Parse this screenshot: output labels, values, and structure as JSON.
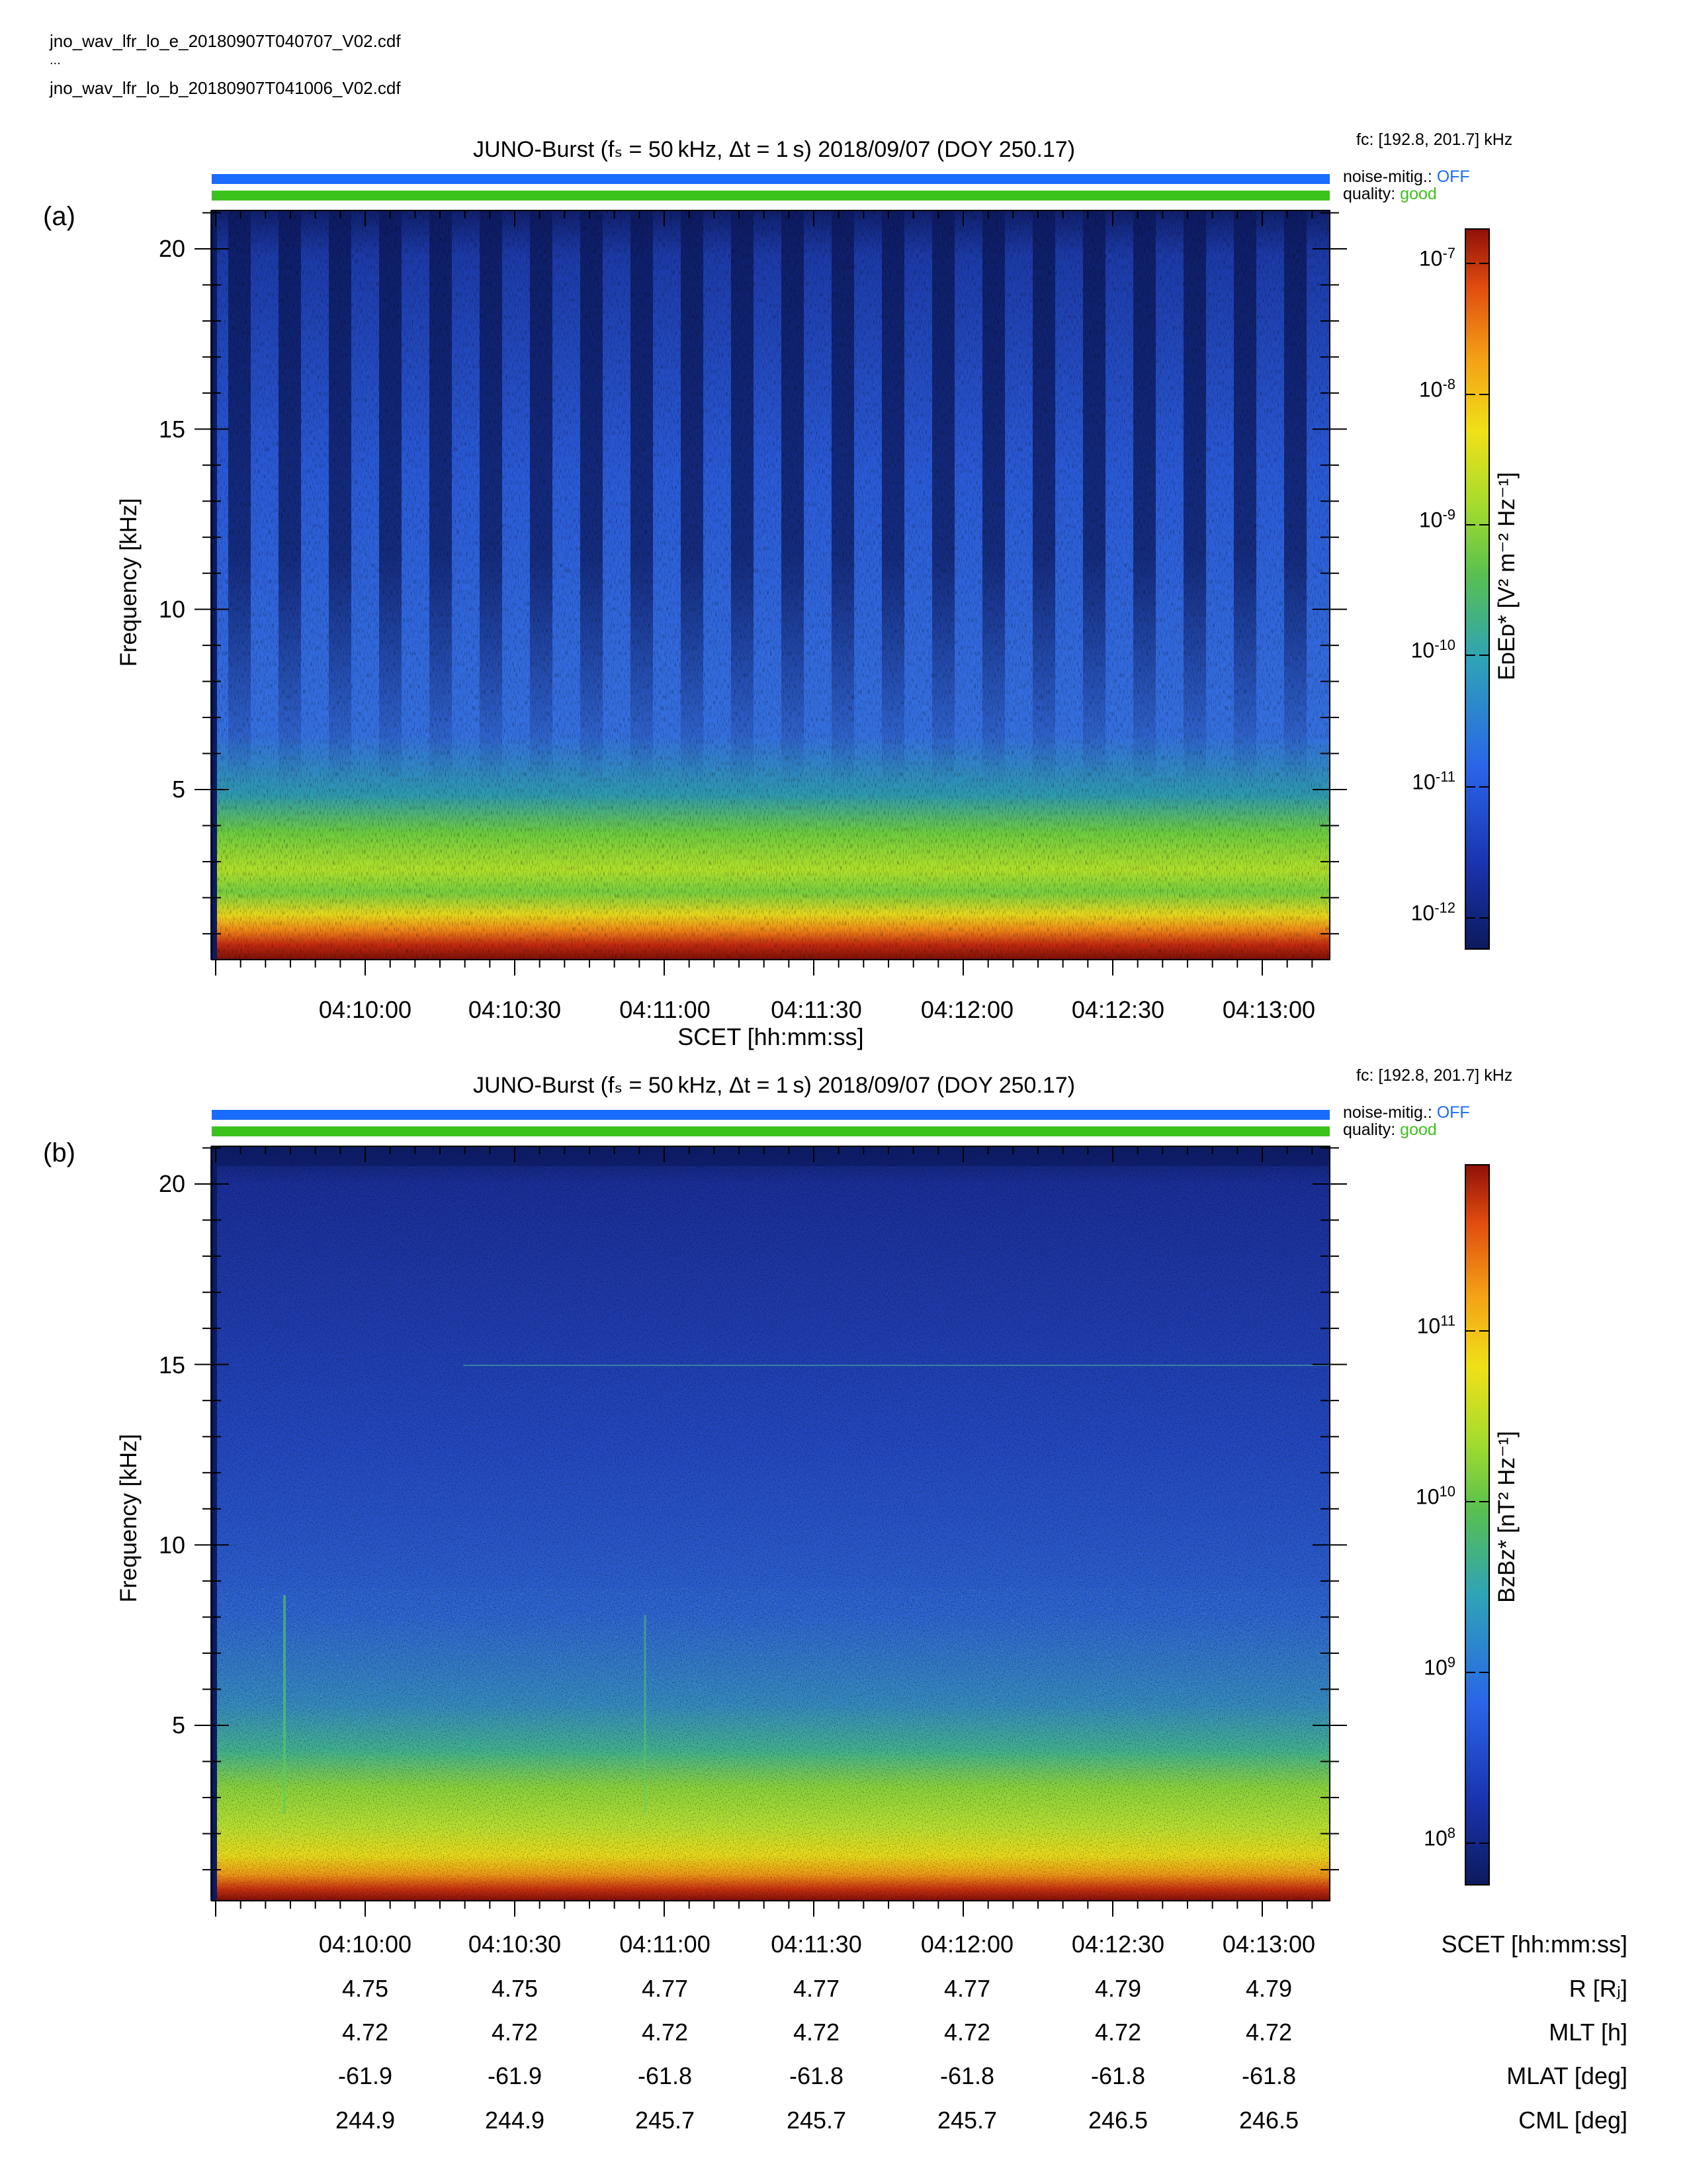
{
  "header": {
    "file1": "jno_wav_lfr_lo_e_20180907T040707_V02.cdf",
    "ellipsis": "...",
    "file2": "jno_wav_lfr_lo_b_20180907T041006_V02.cdf"
  },
  "colors": {
    "noise_bar": "#1a6bff",
    "quality_bar": "#3cc21c"
  },
  "panels": [
    {
      "label": "(a)",
      "title": "JUNO-Burst (fₛ = 50 kHz, Δt = 1 s)  2018/09/07 (DOY 250.17)",
      "fc": "fᴄ: [192.8, 201.7] kHz",
      "noise_label": "noise-mitig.:",
      "noise_value": "OFF",
      "quality_label": "quality:",
      "quality_value": "good",
      "ylabel": "Frequency [kHz]",
      "xlabel": "SCET [hh:mm:ss]",
      "cbar_label": "EᴅEᴅ* [V² m⁻² Hz⁻¹]",
      "cbar_ticks": [
        {
          "base": "10",
          "exp": "-7"
        },
        {
          "base": "10",
          "exp": "-8"
        },
        {
          "base": "10",
          "exp": "-9"
        },
        {
          "base": "10",
          "exp": "-10"
        },
        {
          "base": "10",
          "exp": "-11"
        },
        {
          "base": "10",
          "exp": "-12"
        }
      ]
    },
    {
      "label": "(b)",
      "title": "JUNO-Burst (fₛ = 50 kHz, Δt = 1 s)  2018/09/07 (DOY 250.17)",
      "fc": "fᴄ: [192.8, 201.7] kHz",
      "noise_label": "noise-mitig.:",
      "noise_value": "OFF",
      "quality_label": "quality:",
      "quality_value": "good",
      "ylabel": "Frequency [kHz]",
      "cbar_label": "BᴢBᴢ* [nT² Hz⁻¹]",
      "cbar_ticks": [
        {
          "base": "10",
          "exp": "11"
        },
        {
          "base": "10",
          "exp": "10"
        },
        {
          "base": "10",
          "exp": "9"
        },
        {
          "base": "10",
          "exp": "8"
        }
      ]
    }
  ],
  "table": {
    "rows": [
      {
        "label": "SCET [hh:mm:ss]",
        "values": [
          "04:10:00",
          "04:10:30",
          "04:11:00",
          "04:11:30",
          "04:12:00",
          "04:12:30",
          "04:13:00"
        ]
      },
      {
        "label": "R [Rⱼ]",
        "values": [
          "4.75",
          "4.75",
          "4.77",
          "4.77",
          "4.77",
          "4.79",
          "4.79"
        ]
      },
      {
        "label": "MLT [h]",
        "values": [
          "4.72",
          "4.72",
          "4.72",
          "4.72",
          "4.72",
          "4.72",
          "4.72"
        ]
      },
      {
        "label": "MLAT [deg]",
        "values": [
          "-61.9",
          "-61.9",
          "-61.8",
          "-61.8",
          "-61.8",
          "-61.8",
          "-61.8"
        ]
      },
      {
        "label": "CML [deg]",
        "values": [
          "244.9",
          "244.9",
          "245.7",
          "245.7",
          "245.7",
          "246.5",
          "246.5"
        ]
      }
    ]
  },
  "chart_data": [
    {
      "type": "heatmap",
      "title": "JUNO-Burst (fₛ = 50 kHz, Δt = 1 s)  2018/09/07 (DOY 250.17)",
      "xlabel": "SCET [hh:mm:ss]",
      "ylabel": "Frequency [kHz]",
      "x_tick_labels": [
        "04:10:00",
        "04:10:30",
        "04:11:00",
        "04:11:30",
        "04:12:00",
        "04:12:30",
        "04:13:00"
      ],
      "y_ticks": [
        5,
        10,
        15,
        20
      ],
      "ylim": [
        0,
        21
      ],
      "colorbar": {
        "label": "EᴅEᴅ* [V² m⁻² Hz⁻¹]",
        "scale": "log",
        "range": [
          1e-12,
          1e-07
        ]
      },
      "colormap": "jet-like (dark blue to dark red)",
      "features": "intense emission below ~4 kHz; periodic vertical dark stripes roughly every 10 s extending from ~4 to 21 kHz"
    },
    {
      "type": "heatmap",
      "title": "JUNO-Burst (fₛ = 50 kHz, Δt = 1 s)  2018/09/07 (DOY 250.17)",
      "xlabel": "SCET [hh:mm:ss]",
      "ylabel": "Frequency [kHz]",
      "x_tick_labels": [
        "04:10:00",
        "04:10:30",
        "04:11:00",
        "04:11:30",
        "04:12:00",
        "04:12:30",
        "04:13:00"
      ],
      "y_ticks": [
        5,
        10,
        15,
        20
      ],
      "ylim": [
        0,
        21
      ],
      "colorbar": {
        "label": "BᴢBᴢ* [nT² Hz⁻¹]",
        "scale": "log",
        "range": [
          60000000.0,
          800000000000.0
        ]
      },
      "colormap": "jet-like (dark blue to dark red)",
      "features": "broadband emission below ~4 kHz; faint narrowband line near 15 kHz; faint vertical lines near 04:09:47 and 04:10:55"
    }
  ]
}
